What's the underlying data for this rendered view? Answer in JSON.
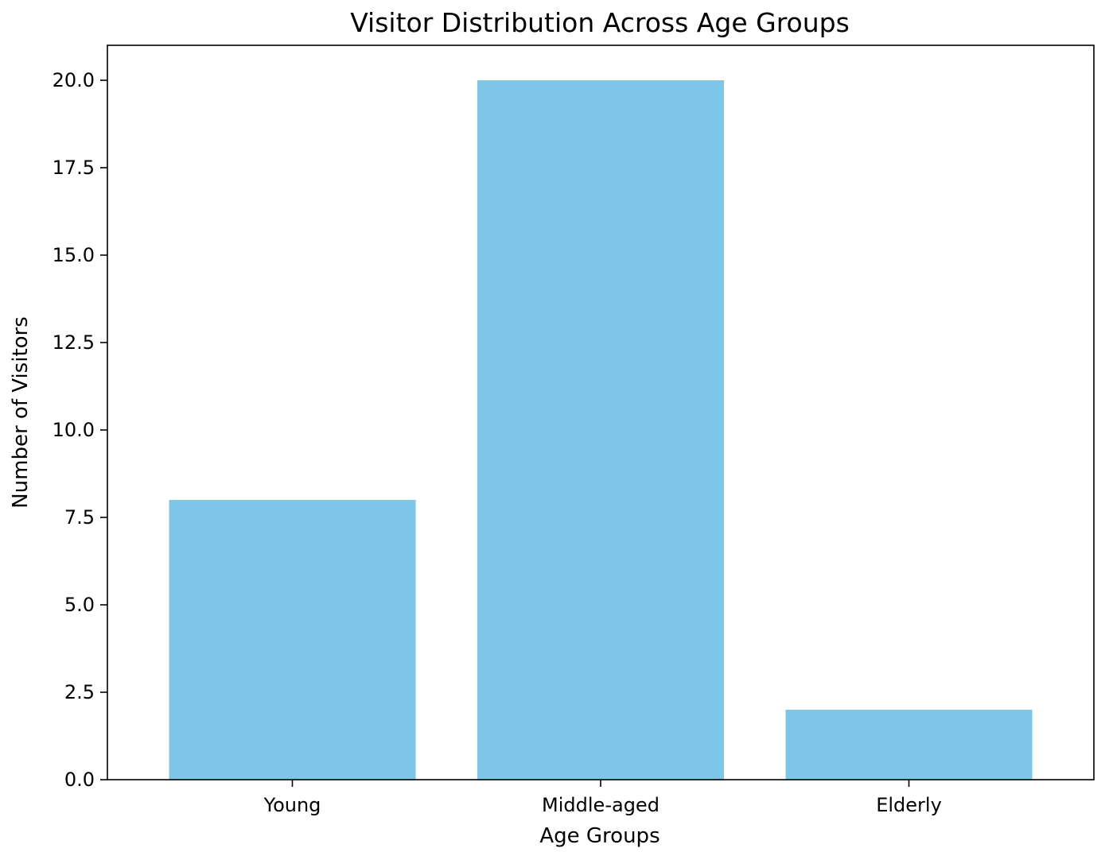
{
  "chart_data": {
    "type": "bar",
    "title": "Visitor Distribution Across Age Groups",
    "xlabel": "Age Groups",
    "ylabel": "Number of Visitors",
    "categories": [
      "Young",
      "Middle-aged",
      "Elderly"
    ],
    "values": [
      8,
      20,
      2
    ],
    "ylim": [
      0,
      21
    ],
    "yticks": [
      0.0,
      2.5,
      5.0,
      7.5,
      10.0,
      12.5,
      15.0,
      17.5,
      20.0
    ],
    "ytick_labels": [
      "0.0",
      "2.5",
      "5.0",
      "7.5",
      "10.0",
      "12.5",
      "15.0",
      "17.5",
      "20.0"
    ],
    "bar_color": "#7ec6e7",
    "grid": false,
    "legend": "none"
  }
}
